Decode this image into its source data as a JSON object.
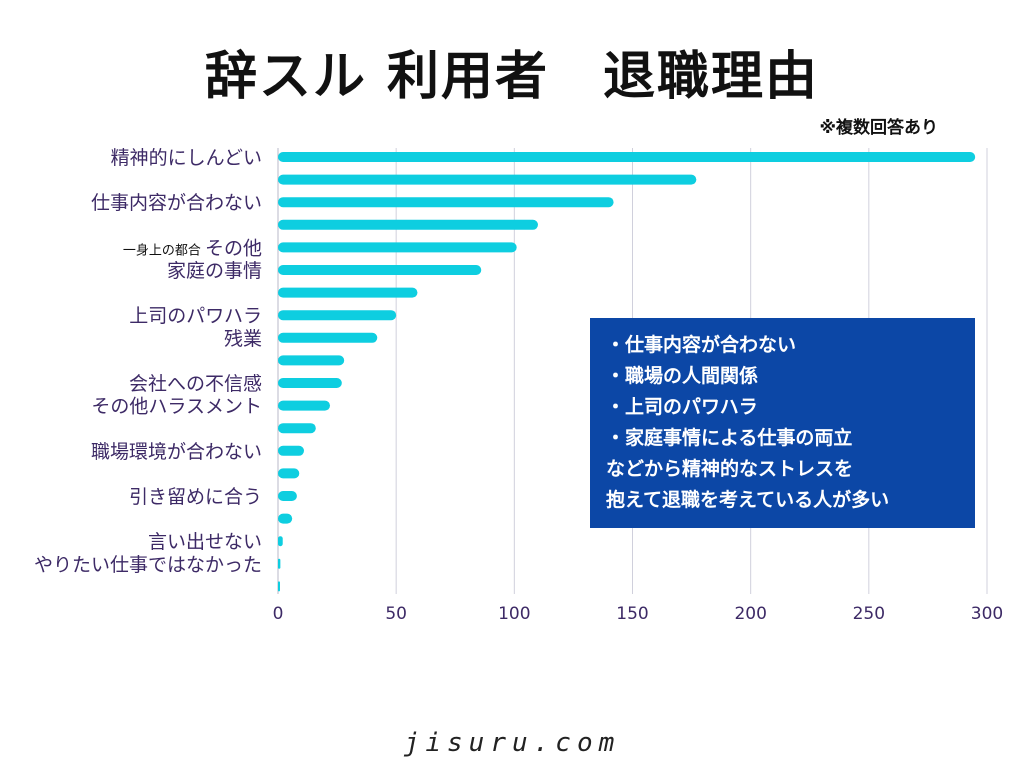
{
  "title": "辞スル 利用者　退職理由",
  "note": "※複数回答あり",
  "footer": "jisuru.com",
  "colors": {
    "bar": "#0ecee0",
    "callout_bg": "#0c47a6",
    "grid": "#d0d0dc",
    "label": "#3d2a66"
  },
  "chart_data": {
    "type": "bar",
    "orientation": "horizontal",
    "title": "辞スル 利用者　退職理由",
    "xlim": [
      0,
      300
    ],
    "xticks": [
      0,
      50,
      100,
      150,
      200,
      250,
      300
    ],
    "grid": true,
    "labels_shown": [
      {
        "row": 0,
        "text": "精神的にしんどい"
      },
      {
        "row": 2,
        "text": "仕事内容が合わない"
      },
      {
        "row": 4,
        "text": "その他",
        "prefix": "一身上の都合 "
      },
      {
        "row": 5,
        "text": "家庭の事情"
      },
      {
        "row": 7,
        "text": "上司のパワハラ"
      },
      {
        "row": 8,
        "text": "残業"
      },
      {
        "row": 10,
        "text": "会社への不信感"
      },
      {
        "row": 11,
        "text": "その他ハラスメント"
      },
      {
        "row": 13,
        "text": "職場環境が合わない"
      },
      {
        "row": 15,
        "text": "引き留めに合う"
      },
      {
        "row": 17,
        "text": "言い出せない"
      },
      {
        "row": 18,
        "text": "やりたい仕事ではなかった"
      }
    ],
    "values": [
      295,
      177,
      142,
      110,
      101,
      86,
      59,
      50,
      42,
      28,
      27,
      22,
      16,
      11,
      9,
      8,
      6,
      2,
      1,
      0.5
    ]
  },
  "callout": {
    "items": [
      "・仕事内容が合わない",
      "・職場の人間関係",
      "・上司のパワハラ",
      "・家庭事情による仕事の両立"
    ],
    "line1": "などから精神的なストレスを",
    "line2": "抱えて退職を考えている人が多い"
  }
}
